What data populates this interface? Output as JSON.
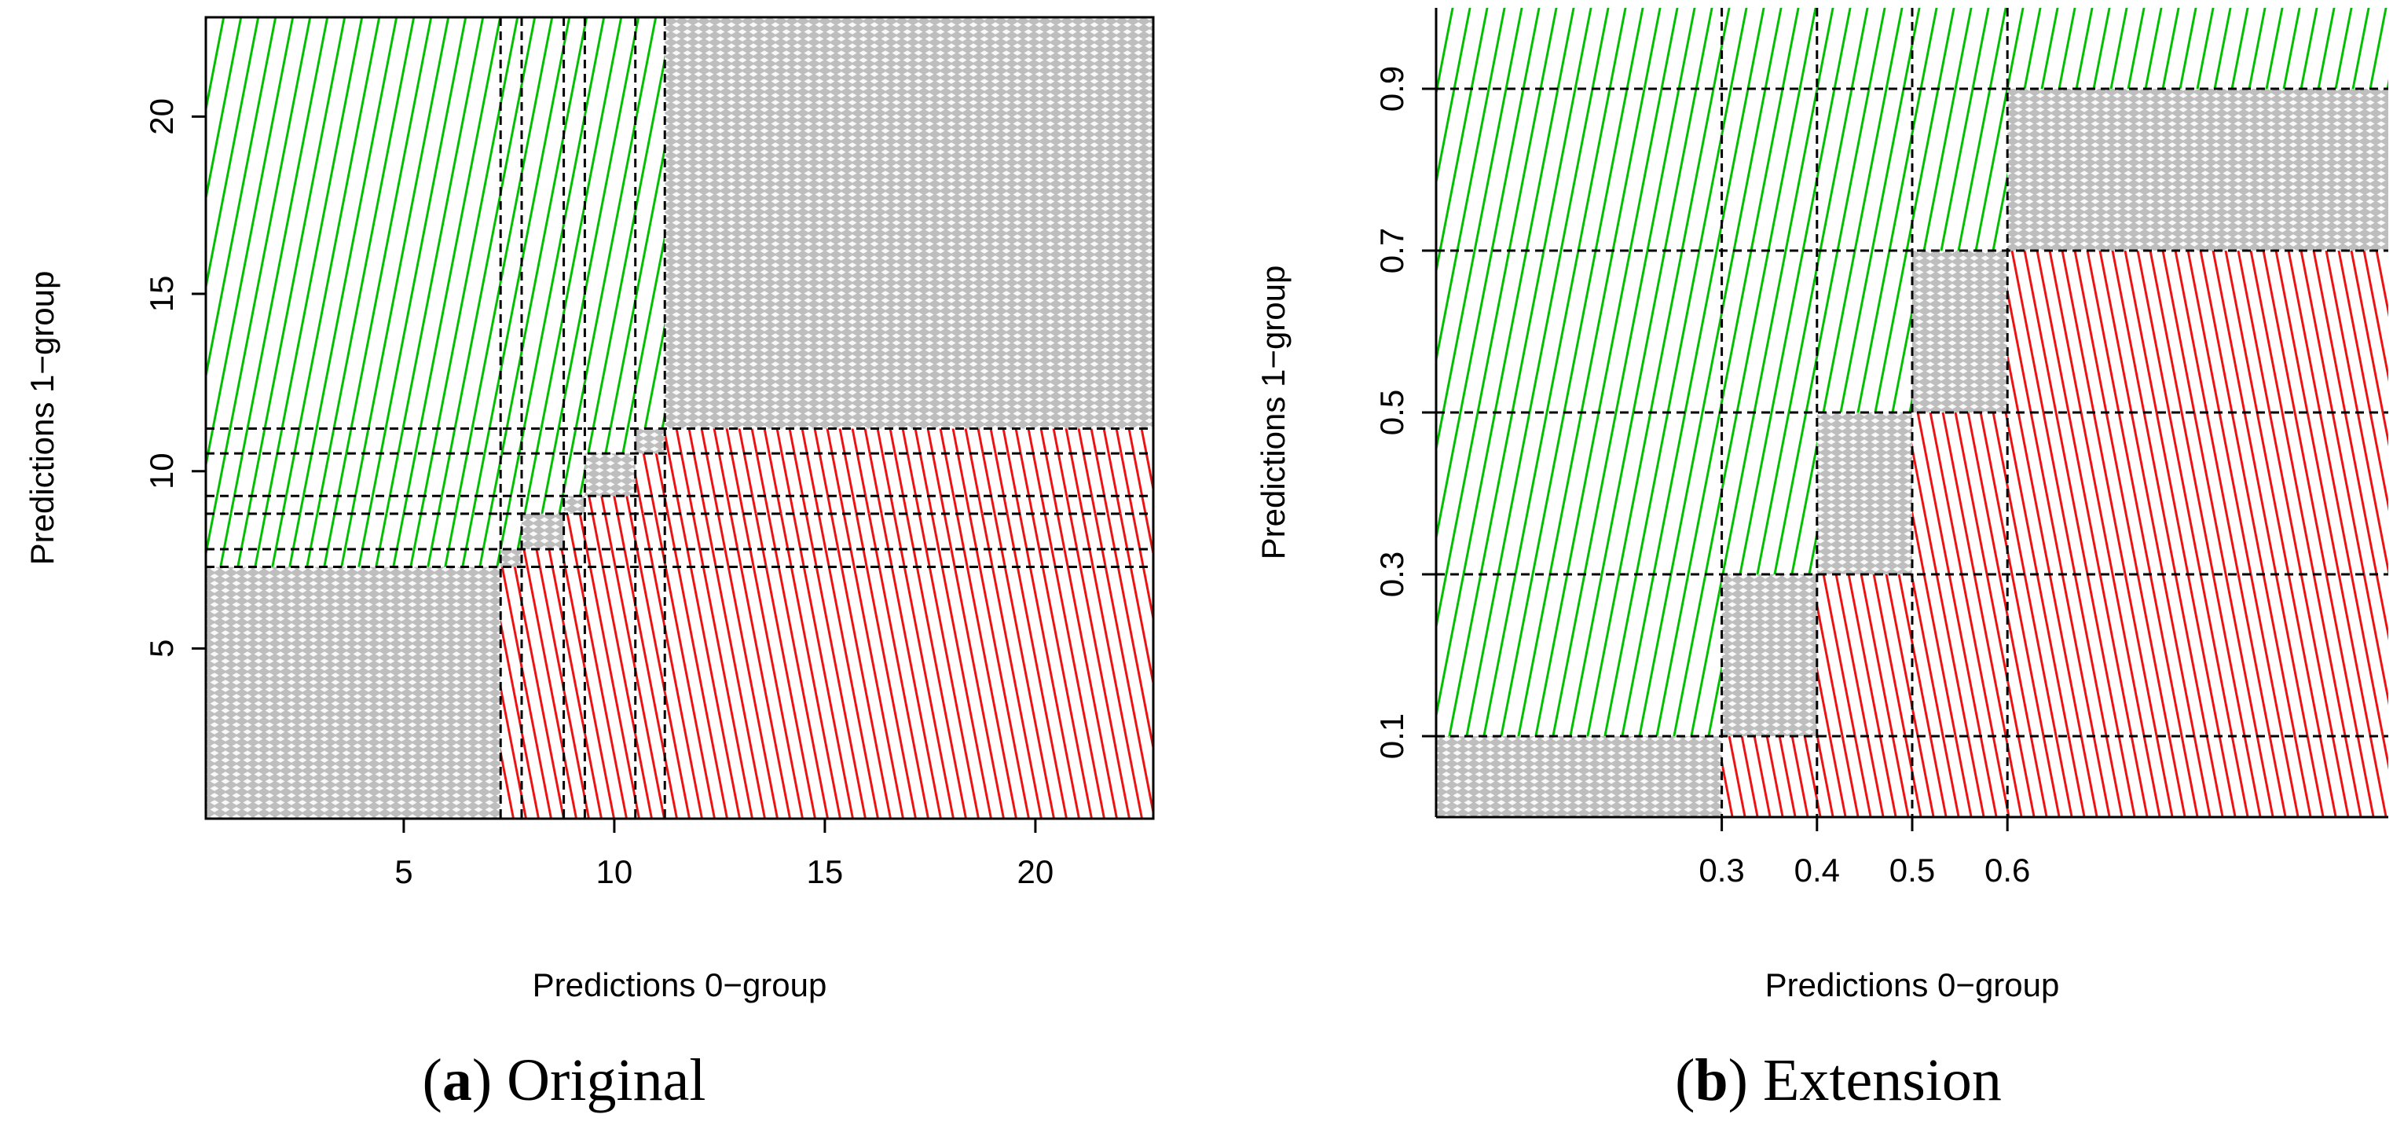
{
  "colors": {
    "green": "#00c000",
    "red": "#ee1111",
    "gray": "#bebebe",
    "frame": "#000000"
  },
  "chart_data": [
    {
      "type": "heatmap",
      "panel_label": "a",
      "caption": "Original",
      "xlabel": "Predictions 0−group",
      "ylabel": "Predictions 1−group",
      "xlim": [
        0.3,
        22.8
      ],
      "ylim": [
        0.2,
        22.8
      ],
      "x_ticks": [
        5,
        10,
        15,
        20
      ],
      "x_tick_labels": [
        "5",
        "10",
        "15",
        "20"
      ],
      "y_ticks": [
        5,
        10,
        15,
        20
      ],
      "y_tick_labels": [
        "5",
        "10",
        "15",
        "20"
      ],
      "x_thresholds": [
        7.3,
        7.8,
        8.8,
        9.3,
        10.5,
        11.2
      ],
      "y_thresholds": [
        7.3,
        7.8,
        8.8,
        9.3,
        10.5,
        11.2
      ],
      "legend_regions": [
        "green = upper-left (1-group higher)",
        "red = lower-right (0-group higher)",
        "gray = ties (same band)"
      ]
    },
    {
      "type": "heatmap",
      "panel_label": "b",
      "caption": "Extension",
      "xlabel": "Predictions 0−group",
      "ylabel": "Predictions 1−group",
      "xlim": [
        0.0,
        1.0
      ],
      "ylim": [
        0.0,
        1.0
      ],
      "x_ticks": [
        0.3,
        0.4,
        0.5,
        0.6
      ],
      "x_tick_labels": [
        "0.3",
        "0.4",
        "0.5",
        "0.6"
      ],
      "y_ticks": [
        0.1,
        0.3,
        0.5,
        0.7,
        0.9
      ],
      "y_tick_labels": [
        "0.1",
        "0.3",
        "0.5",
        "0.7",
        "0.9"
      ],
      "x_thresholds": [
        0.3,
        0.4,
        0.5,
        0.6
      ],
      "y_thresholds": [
        0.1,
        0.3,
        0.5,
        0.7,
        0.9
      ],
      "legend_regions": [
        "green = upper-left (1-group higher)",
        "red = lower-right (0-group higher)",
        "gray = ties (same band)"
      ]
    }
  ]
}
